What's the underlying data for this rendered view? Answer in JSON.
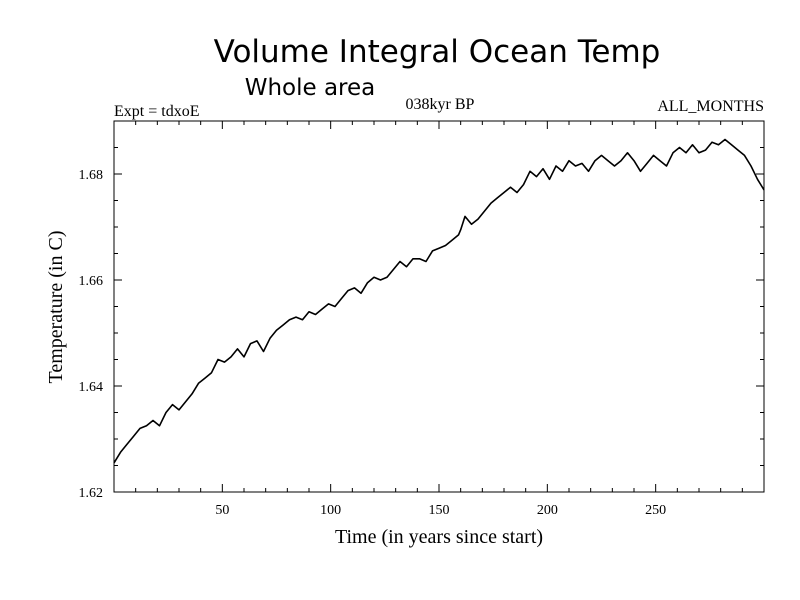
{
  "chart_data": {
    "type": "line",
    "title": "Volume Integral Ocean Temp",
    "subtitle": "Whole area",
    "experiment_label": "Expt = tdxoE",
    "period_label": "038kyr BP",
    "months_label": "ALL_MONTHS",
    "xlabel": "Time (in years since start)",
    "ylabel": "Temperature (in C)",
    "xlim": [
      0,
      300
    ],
    "ylim": [
      1.62,
      1.69
    ],
    "x_ticks": [
      50,
      100,
      150,
      200,
      250
    ],
    "x_tick_labels": [
      "50",
      "100",
      "150",
      "200",
      "250"
    ],
    "y_ticks": [
      1.62,
      1.64,
      1.66,
      1.68
    ],
    "y_tick_labels": [
      "1.62",
      "1.64",
      "1.66",
      "1.68"
    ],
    "grid": false,
    "series": [
      {
        "color": "#000000",
        "x": [
          0,
          3,
          6,
          9,
          12,
          15,
          18,
          21,
          24,
          27,
          30,
          33,
          36,
          39,
          42,
          45,
          48,
          51,
          54,
          57,
          60,
          63,
          66,
          69,
          72,
          75,
          78,
          81,
          84,
          87,
          90,
          93,
          96,
          99,
          102,
          105,
          108,
          111,
          114,
          117,
          120,
          123,
          126,
          129,
          132,
          135,
          138,
          141,
          144,
          147,
          150,
          153,
          156,
          159,
          160,
          162,
          165,
          168,
          171,
          174,
          177,
          180,
          183,
          186,
          189,
          192,
          195,
          198,
          201,
          204,
          207,
          210,
          213,
          216,
          219,
          222,
          225,
          228,
          231,
          234,
          237,
          240,
          243,
          246,
          249,
          252,
          255,
          258,
          261,
          264,
          267,
          270,
          273,
          276,
          279,
          282,
          285,
          288,
          291,
          294,
          297,
          300
        ],
        "values": [
          1.6255,
          1.6275,
          1.629,
          1.6305,
          1.632,
          1.6325,
          1.6335,
          1.6325,
          1.635,
          1.6365,
          1.6355,
          1.637,
          1.6385,
          1.6405,
          1.6415,
          1.6425,
          1.645,
          1.6445,
          1.6455,
          1.647,
          1.6455,
          1.648,
          1.6485,
          1.6465,
          1.649,
          1.6505,
          1.6515,
          1.6525,
          1.653,
          1.6525,
          1.654,
          1.6535,
          1.6545,
          1.6555,
          1.655,
          1.6565,
          1.658,
          1.6585,
          1.6575,
          1.6595,
          1.6605,
          1.66,
          1.6605,
          1.662,
          1.6635,
          1.6625,
          1.664,
          1.664,
          1.6635,
          1.6655,
          1.666,
          1.6665,
          1.6675,
          1.6685,
          1.6695,
          1.672,
          1.6705,
          1.6715,
          1.673,
          1.6745,
          1.6755,
          1.6765,
          1.6775,
          1.6765,
          1.678,
          1.6805,
          1.6795,
          1.681,
          1.679,
          1.6815,
          1.6805,
          1.6825,
          1.6815,
          1.682,
          1.6805,
          1.6825,
          1.6835,
          1.6825,
          1.6815,
          1.6825,
          1.684,
          1.6825,
          1.6805,
          1.682,
          1.6835,
          1.6825,
          1.6815,
          1.684,
          1.685,
          1.684,
          1.6855,
          1.684,
          1.6845,
          1.686,
          1.6855,
          1.6865,
          1.6855,
          1.6845,
          1.6835,
          1.6815,
          1.679,
          1.677
        ]
      }
    ]
  }
}
